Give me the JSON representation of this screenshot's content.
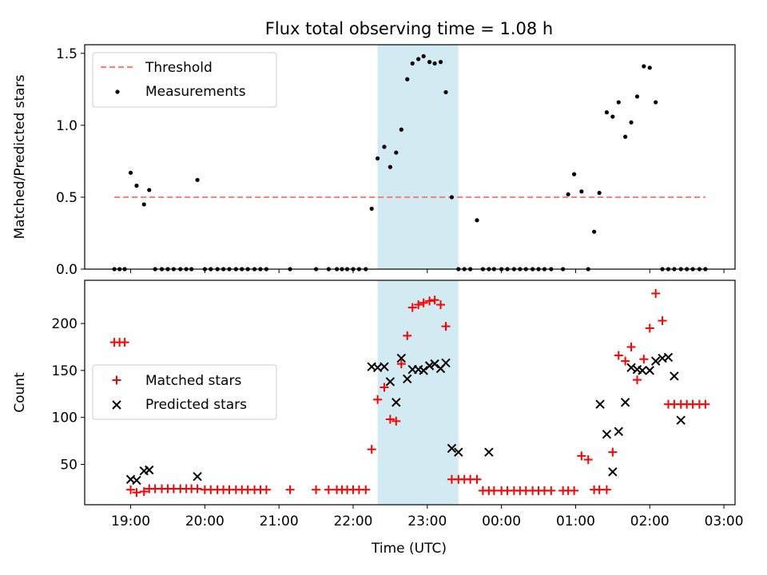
{
  "figure": {
    "title": "Flux total observing time = 1.08 h",
    "xlabel": "Time (UTC)"
  },
  "colors": {
    "band": "#add8e6",
    "threshold": "#ff7f7f",
    "matched": "#ff0000",
    "predicted": "#000000",
    "measurement": "#000000"
  },
  "chart_data": [
    {
      "type": "scatter",
      "panel": "top",
      "ylabel": "Matched/Predicted stars",
      "xaxis": "time (hours since 00:00 UTC of first day; ticks labelled HH:MM)",
      "xlim": [
        18.38,
        27.15
      ],
      "ylim": [
        0,
        1.56
      ],
      "xticks": [
        19,
        20,
        21,
        22,
        23,
        24,
        25,
        26,
        27
      ],
      "xtick_labels": [
        "19:00",
        "20:00",
        "21:00",
        "22:00",
        "23:00",
        "00:00",
        "01:00",
        "02:00",
        "03:00"
      ],
      "yticks": [
        0,
        0.5,
        1,
        1.5
      ],
      "ytick_labels": [
        "0.0",
        "0.5",
        "1.0",
        "1.5"
      ],
      "shaded_band": [
        22.33,
        23.42
      ],
      "legend": {
        "placement": "upper left",
        "entries": [
          "Threshold",
          "Measurements"
        ]
      },
      "series": [
        {
          "name": "Threshold",
          "kind": "dashed-line",
          "x": [
            18.78,
            26.75
          ],
          "y": [
            0.5,
            0.5
          ]
        },
        {
          "name": "Measurements",
          "kind": "dots",
          "x": [
            18.78,
            18.85,
            18.92,
            19.0,
            19.08,
            19.18,
            19.25,
            19.33,
            19.42,
            19.5,
            19.58,
            19.67,
            19.75,
            19.82,
            19.9,
            20.0,
            20.08,
            20.17,
            20.25,
            20.33,
            20.42,
            20.5,
            20.58,
            20.67,
            20.75,
            20.83,
            21.15,
            21.5,
            21.67,
            21.78,
            21.85,
            21.92,
            22.0,
            22.08,
            22.17,
            22.25,
            22.33,
            22.42,
            22.5,
            22.58,
            22.65,
            22.73,
            22.8,
            22.88,
            22.95,
            23.03,
            23.1,
            23.18,
            23.25,
            23.33,
            23.42,
            23.5,
            23.58,
            23.67,
            23.75,
            23.83,
            23.9,
            24.0,
            24.08,
            24.17,
            24.25,
            24.33,
            24.42,
            24.5,
            24.58,
            24.67,
            24.83,
            24.9,
            24.98,
            25.08,
            25.17,
            25.25,
            25.32,
            25.42,
            25.5,
            25.58,
            25.67,
            25.75,
            25.83,
            25.92,
            26.0,
            26.08,
            26.17,
            26.25,
            26.33,
            26.42,
            26.5,
            26.58,
            26.67,
            26.75
          ],
          "y": [
            0,
            0,
            0,
            0.67,
            0.58,
            0.45,
            0.55,
            0,
            0,
            0,
            0,
            0,
            0,
            0,
            0.62,
            0,
            0,
            0,
            0,
            0,
            0,
            0,
            0,
            0,
            0,
            0,
            0,
            0,
            0,
            0,
            0,
            0,
            0,
            0,
            0,
            0.42,
            0.77,
            0.85,
            0.71,
            0.81,
            0.97,
            1.32,
            1.43,
            1.46,
            1.48,
            1.44,
            1.43,
            1.44,
            1.23,
            0.5,
            0,
            0,
            0,
            0.34,
            0,
            0,
            0,
            0,
            0,
            0,
            0,
            0,
            0,
            0,
            0,
            0,
            0,
            0.52,
            0.66,
            0.54,
            0,
            0.26,
            0.53,
            1.09,
            1.06,
            1.16,
            0.92,
            1.02,
            1.2,
            1.41,
            1.4,
            1.16,
            0,
            0,
            0,
            0,
            0,
            0,
            0,
            0
          ]
        }
      ]
    },
    {
      "type": "scatter",
      "panel": "bottom",
      "ylabel": "Count",
      "xlabel": "Time (UTC)",
      "xaxis": "time (hours since 00:00 UTC of first day; ticks labelled HH:MM)",
      "xlim": [
        18.38,
        27.15
      ],
      "ylim": [
        7,
        246
      ],
      "xticks": [
        19,
        20,
        21,
        22,
        23,
        24,
        25,
        26,
        27
      ],
      "xtick_labels": [
        "19:00",
        "20:00",
        "21:00",
        "22:00",
        "23:00",
        "00:00",
        "01:00",
        "02:00",
        "03:00"
      ],
      "yticks": [
        50,
        100,
        150,
        200
      ],
      "ytick_labels": [
        "50",
        "100",
        "150",
        "200"
      ],
      "shaded_band": [
        22.33,
        23.42
      ],
      "legend": {
        "placement": "center left",
        "entries": [
          "Matched stars",
          "Predicted stars"
        ]
      },
      "series": [
        {
          "name": "Matched stars",
          "kind": "plus",
          "x": [
            18.78,
            18.85,
            18.92,
            19.0,
            19.08,
            19.18,
            19.25,
            19.33,
            19.42,
            19.5,
            19.58,
            19.67,
            19.75,
            19.82,
            19.9,
            20.0,
            20.08,
            20.17,
            20.25,
            20.33,
            20.42,
            20.5,
            20.58,
            20.67,
            20.75,
            20.83,
            21.15,
            21.5,
            21.67,
            21.78,
            21.85,
            21.92,
            22.0,
            22.08,
            22.17,
            22.25,
            22.33,
            22.42,
            22.5,
            22.58,
            22.65,
            22.73,
            22.8,
            22.88,
            22.95,
            23.03,
            23.1,
            23.18,
            23.25,
            23.33,
            23.42,
            23.5,
            23.58,
            23.67,
            23.75,
            23.83,
            23.9,
            24.0,
            24.08,
            24.17,
            24.25,
            24.33,
            24.42,
            24.5,
            24.58,
            24.67,
            24.83,
            24.9,
            24.98,
            25.08,
            25.17,
            25.25,
            25.32,
            25.42,
            25.5,
            25.58,
            25.67,
            25.75,
            25.83,
            25.92,
            26.0,
            26.08,
            26.17,
            26.25,
            26.33,
            26.42,
            26.5,
            26.58,
            26.67,
            26.75
          ],
          "y": [
            180,
            180,
            180,
            23,
            20,
            21,
            24,
            24,
            24,
            24,
            24,
            24,
            24,
            24,
            24,
            23,
            23,
            23,
            23,
            23,
            23,
            23,
            23,
            23,
            23,
            23,
            23,
            23,
            23,
            23,
            23,
            23,
            23,
            23,
            23,
            66,
            119,
            132,
            98,
            96,
            157,
            187,
            217,
            220,
            222,
            224,
            225,
            220,
            197,
            34,
            34,
            34,
            34,
            34,
            22,
            22,
            22,
            22,
            22,
            22,
            22,
            22,
            22,
            22,
            22,
            22,
            22,
            22,
            22,
            59,
            55,
            23,
            23,
            23,
            63,
            166,
            160,
            175,
            140,
            162,
            195,
            232,
            203,
            114,
            114,
            114,
            114,
            114,
            114,
            114
          ]
        },
        {
          "name": "Predicted stars",
          "kind": "x",
          "x": [
            19.0,
            19.08,
            19.18,
            19.25,
            19.9,
            22.25,
            22.33,
            22.42,
            22.5,
            22.58,
            22.65,
            22.73,
            22.8,
            22.88,
            22.95,
            23.03,
            23.1,
            23.18,
            23.25,
            23.33,
            23.42,
            23.83,
            25.33,
            25.42,
            25.5,
            25.58,
            25.67,
            25.75,
            25.83,
            25.9,
            26.0,
            26.08,
            26.17,
            26.25,
            26.33,
            26.42
          ],
          "y": [
            34,
            33,
            43,
            44,
            37,
            154,
            153,
            154,
            138,
            116,
            163,
            141,
            151,
            151,
            150,
            155,
            157,
            152,
            158,
            67,
            63,
            63,
            114,
            82,
            42,
            85,
            116,
            153,
            151,
            150,
            150,
            160,
            163,
            164,
            144,
            97
          ]
        }
      ]
    }
  ]
}
